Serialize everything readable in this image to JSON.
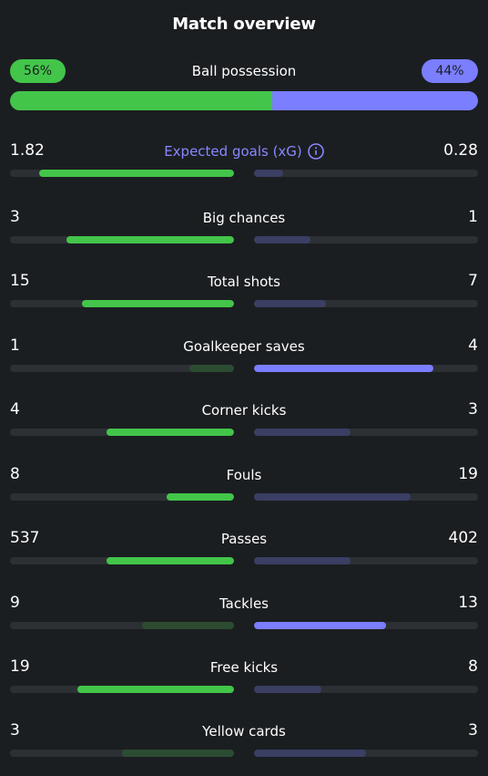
{
  "title": "Match overview",
  "colors": {
    "home_win": "#43c54a",
    "home_lose": "#2c4c32",
    "away_win": "#7a7eff",
    "away_lose": "#3a3f63",
    "track": "#2c3034",
    "accent": "#8a87ff"
  },
  "possession": {
    "label": "Ball possession",
    "home_text": "56%",
    "away_text": "44%",
    "home_value": 56,
    "away_value": 44
  },
  "stats": [
    {
      "label": "Expected goals (xG)",
      "home": "1.82",
      "away": "0.28",
      "home_fraction": 0.87,
      "away_fraction": 0.13,
      "winner": "home",
      "info_icon": "info-icon",
      "accent": true
    },
    {
      "label": "Big chances",
      "home": "3",
      "away": "1",
      "home_fraction": 0.75,
      "away_fraction": 0.25,
      "winner": "home"
    },
    {
      "label": "Total shots",
      "home": "15",
      "away": "7",
      "home_fraction": 0.68,
      "away_fraction": 0.32,
      "winner": "home"
    },
    {
      "label": "Goalkeeper saves",
      "home": "1",
      "away": "4",
      "home_fraction": 0.2,
      "away_fraction": 0.8,
      "winner": "away"
    },
    {
      "label": "Corner kicks",
      "home": "4",
      "away": "3",
      "home_fraction": 0.57,
      "away_fraction": 0.43,
      "winner": "home"
    },
    {
      "label": "Fouls",
      "home": "8",
      "away": "19",
      "home_fraction": 0.3,
      "away_fraction": 0.7,
      "winner": "home"
    },
    {
      "label": "Passes",
      "home": "537",
      "away": "402",
      "home_fraction": 0.57,
      "away_fraction": 0.43,
      "winner": "home"
    },
    {
      "label": "Tackles",
      "home": "9",
      "away": "13",
      "home_fraction": 0.41,
      "away_fraction": 0.59,
      "winner": "away"
    },
    {
      "label": "Free kicks",
      "home": "19",
      "away": "8",
      "home_fraction": 0.7,
      "away_fraction": 0.3,
      "winner": "home"
    },
    {
      "label": "Yellow cards",
      "home": "3",
      "away": "3",
      "home_fraction": 0.5,
      "away_fraction": 0.5,
      "winner": "none"
    }
  ]
}
